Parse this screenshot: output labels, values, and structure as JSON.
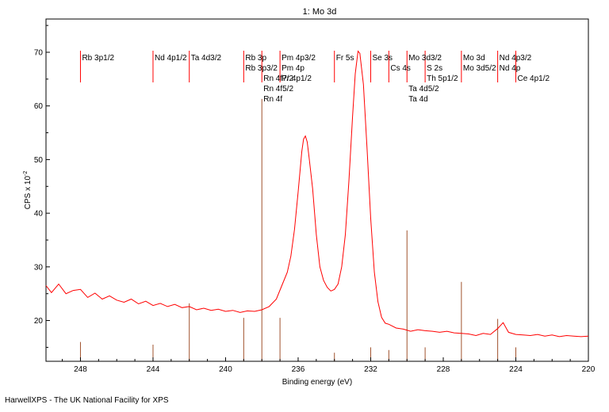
{
  "footer": "HarwellXPS - The UK National Facility for XPS",
  "chart_data": {
    "type": "line",
    "title": "1: Mo 3d",
    "xlabel": "Binding energy (eV)",
    "ylabel": "CPS x 10",
    "ylabel_exponent": "-2",
    "xlim": [
      249.9,
      220
    ],
    "ylim": [
      12.4,
      76.2
    ],
    "x_reversed": true,
    "x_ticks": [
      248,
      244,
      240,
      236,
      232,
      228,
      224,
      220
    ],
    "x_tick_labels": [
      "248",
      "244",
      "240",
      "236",
      "232",
      "228",
      "224",
      "220"
    ],
    "y_ticks": [
      20,
      30,
      40,
      50,
      60,
      70
    ],
    "y_tick_labels": [
      "20",
      "30",
      "40",
      "50",
      "60",
      "70"
    ],
    "grid": false,
    "line_color": "#ff0000",
    "marker_color": "#a0522d",
    "series": [
      {
        "values": [
          [
            249.9,
            26.5
          ],
          [
            249.6,
            25.2
          ],
          [
            249.2,
            26.8
          ],
          [
            248.8,
            25.0
          ],
          [
            248.4,
            25.6
          ],
          [
            248.0,
            25.8
          ],
          [
            247.6,
            24.3
          ],
          [
            247.2,
            25.1
          ],
          [
            246.8,
            24.0
          ],
          [
            246.4,
            24.6
          ],
          [
            246.0,
            23.8
          ],
          [
            245.6,
            23.4
          ],
          [
            245.2,
            24.0
          ],
          [
            244.8,
            23.1
          ],
          [
            244.4,
            23.6
          ],
          [
            244.0,
            22.8
          ],
          [
            243.6,
            23.2
          ],
          [
            243.2,
            22.6
          ],
          [
            242.8,
            23.0
          ],
          [
            242.4,
            22.4
          ],
          [
            242.0,
            22.6
          ],
          [
            241.6,
            22.0
          ],
          [
            241.2,
            22.3
          ],
          [
            240.8,
            21.9
          ],
          [
            240.4,
            22.1
          ],
          [
            240.0,
            21.7
          ],
          [
            239.6,
            21.9
          ],
          [
            239.2,
            21.5
          ],
          [
            238.8,
            21.8
          ],
          [
            238.4,
            21.7
          ],
          [
            238.0,
            22.0
          ],
          [
            237.6,
            22.6
          ],
          [
            237.2,
            24.0
          ],
          [
            236.9,
            26.5
          ],
          [
            236.6,
            29.0
          ],
          [
            236.4,
            32.0
          ],
          [
            236.2,
            37.0
          ],
          [
            236.0,
            44.0
          ],
          [
            235.8,
            51.5
          ],
          [
            235.7,
            53.8
          ],
          [
            235.6,
            54.4
          ],
          [
            235.5,
            53.3
          ],
          [
            235.4,
            50.5
          ],
          [
            235.2,
            44.5
          ],
          [
            235.0,
            36.0
          ],
          [
            234.8,
            30.0
          ],
          [
            234.6,
            27.5
          ],
          [
            234.4,
            26.2
          ],
          [
            234.2,
            25.5
          ],
          [
            234.0,
            25.8
          ],
          [
            233.8,
            26.8
          ],
          [
            233.6,
            30.0
          ],
          [
            233.4,
            36.0
          ],
          [
            233.2,
            46.0
          ],
          [
            233.0,
            58.0
          ],
          [
            232.85,
            66.0
          ],
          [
            232.7,
            70.2
          ],
          [
            232.6,
            69.8
          ],
          [
            232.4,
            64.0
          ],
          [
            232.2,
            52.0
          ],
          [
            232.0,
            39.0
          ],
          [
            231.8,
            29.0
          ],
          [
            231.6,
            23.5
          ],
          [
            231.4,
            20.6
          ],
          [
            231.2,
            19.5
          ],
          [
            231.0,
            19.3
          ],
          [
            230.6,
            18.6
          ],
          [
            230.2,
            18.4
          ],
          [
            229.8,
            18.0
          ],
          [
            229.4,
            18.3
          ],
          [
            229.0,
            18.1
          ],
          [
            228.6,
            18.0
          ],
          [
            228.2,
            17.8
          ],
          [
            227.8,
            18.0
          ],
          [
            227.4,
            17.7
          ],
          [
            227.0,
            17.6
          ],
          [
            226.6,
            17.5
          ],
          [
            226.2,
            17.2
          ],
          [
            225.8,
            17.6
          ],
          [
            225.4,
            17.4
          ],
          [
            225.0,
            18.5
          ],
          [
            224.7,
            19.6
          ],
          [
            224.4,
            17.8
          ],
          [
            224.0,
            17.4
          ],
          [
            223.6,
            17.3
          ],
          [
            223.2,
            17.2
          ],
          [
            222.8,
            17.4
          ],
          [
            222.4,
            17.1
          ],
          [
            222.0,
            17.3
          ],
          [
            221.6,
            17.0
          ],
          [
            221.2,
            17.2
          ],
          [
            220.8,
            17.1
          ],
          [
            220.4,
            17.0
          ],
          [
            220.0,
            17.1
          ]
        ]
      }
    ],
    "markers": [
      {
        "x": 248.0,
        "height": 16.0,
        "labels": [
          "Rb 3p1/2"
        ],
        "label_side": "right"
      },
      {
        "x": 244.0,
        "height": 15.5,
        "labels": [
          "Nd 4p1/2"
        ],
        "label_side": "right"
      },
      {
        "x": 242.0,
        "height": 23.2,
        "labels": [
          "Ta 4d3/2"
        ],
        "label_side": "right"
      },
      {
        "x": 239.0,
        "height": 20.5,
        "labels": [
          "Rb 3p",
          "Rb 3p3/2"
        ],
        "label_side": "right"
      },
      {
        "x": 238.0,
        "height": 61.3,
        "labels": [
          "Rn 4f7/2",
          "Rn 4f5/2",
          "Rn 4f"
        ],
        "label_side": "right",
        "label_offset_lines": 2
      },
      {
        "x": 237.0,
        "height": 20.5,
        "labels": [
          "Pm 4p3/2",
          "Pm 4p",
          "Pr 4p1/2"
        ],
        "label_side": "right"
      },
      {
        "x": 234.0,
        "height": 14.0,
        "labels": [
          "Fr 5s"
        ],
        "label_side": "right"
      },
      {
        "x": 232.0,
        "height": 15.0,
        "labels": [
          "Se 3s"
        ],
        "label_side": "right"
      },
      {
        "x": 231.0,
        "height": 14.5,
        "labels": [
          "Cs 4s"
        ],
        "label_side": "right",
        "label_offset_lines": 1
      },
      {
        "x": 230.0,
        "height": 36.8,
        "labels": [
          "Mo 3d3/2"
        ],
        "label_side": "right"
      },
      {
        "x": 229.0,
        "height": 15.0,
        "labels": [
          "S 2s",
          "Th 5p1/2"
        ],
        "label_side": "right",
        "label_offset_lines": 1
      },
      {
        "x": 227.0,
        "height": 27.2,
        "labels": [
          "Mo 3d",
          "Mo 3d5/2"
        ],
        "label_side": "right"
      },
      {
        "x": 225.0,
        "height": 20.3,
        "labels": [
          "Nd 4p3/2",
          "Nd 4p"
        ],
        "label_side": "right"
      },
      {
        "x": 224.0,
        "height": 15.0,
        "labels": [
          "Ce 4p1/2"
        ],
        "label_side": "right",
        "label_offset_lines": 2
      },
      {
        "x": 230.0,
        "height": 0,
        "labels": [
          "Ta 4d5/2",
          "Ta 4d"
        ],
        "label_side": "right",
        "label_offset_lines": 3,
        "label_only": true
      }
    ]
  }
}
